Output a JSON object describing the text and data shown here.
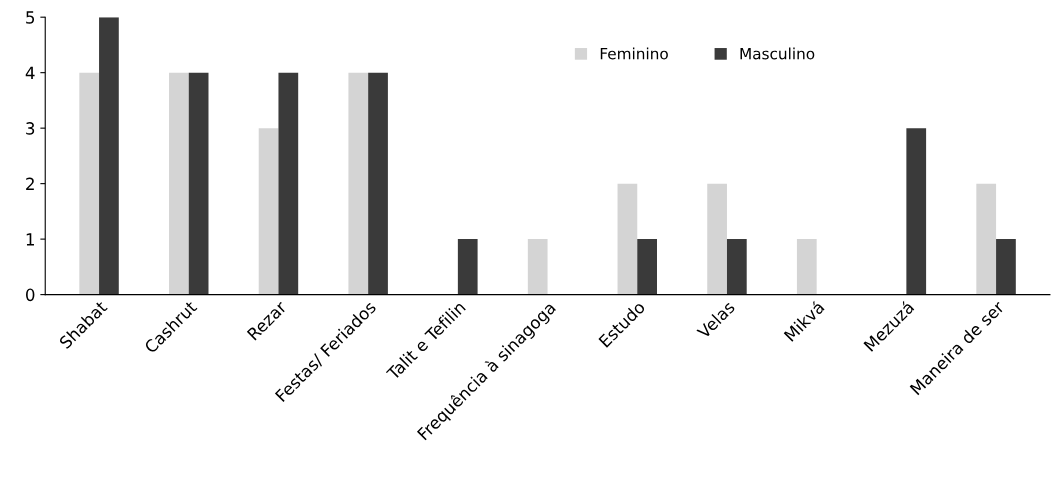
{
  "chart_data": {
    "type": "bar",
    "categories": [
      "Shabat",
      "Cashrut",
      "Rezar",
      "Festas/ Feriados",
      "Talit e Tefilin",
      "Frequência à sinagoga",
      "Estudo",
      "Velas",
      "Mikvá",
      "Mezuzá",
      "Maneira de ser"
    ],
    "series": [
      {
        "name": "Feminino",
        "color": "#d4d4d4",
        "values": [
          4,
          4,
          3,
          4,
          0,
          1,
          2,
          2,
          1,
          0,
          2
        ]
      },
      {
        "name": "Masculino",
        "color": "#3a3a3a",
        "values": [
          5,
          4,
          4,
          4,
          1,
          0,
          1,
          1,
          0,
          3,
          1
        ]
      }
    ],
    "ylim": [
      0,
      5
    ],
    "yticks": [
      0,
      1,
      2,
      3,
      4,
      5
    ],
    "grid": false,
    "legend": "top right"
  }
}
